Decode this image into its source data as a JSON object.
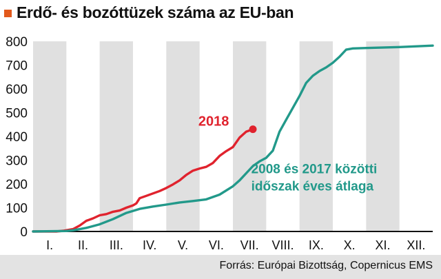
{
  "title": "Erdő- és bozóttüzek száma az EU-ban",
  "source": "Forrás: Európai Bizottság, Copernicus EMS",
  "colors": {
    "accent": "#e2591c",
    "series_2018": "#e0232e",
    "series_avg": "#22998a",
    "band": "#e0e0e0",
    "background": "#ffffff"
  },
  "chart_data": {
    "type": "line",
    "title": "Erdő- és bozóttüzek száma az EU-ban",
    "xlabel": "",
    "ylabel": "",
    "categories": [
      "I.",
      "II.",
      "III.",
      "IV.",
      "V.",
      "VI.",
      "VII.",
      "VIII.",
      "IX.",
      "X.",
      "XI.",
      "XII."
    ],
    "xlim": [
      0,
      12
    ],
    "ylim": [
      0,
      800
    ],
    "yticks": [
      0,
      100,
      200,
      300,
      400,
      500,
      600,
      700,
      800
    ],
    "grid": false,
    "series": [
      {
        "name": "2018",
        "color": "#e0232e",
        "end_marker": true,
        "points": [
          [
            0.0,
            0
          ],
          [
            0.7,
            0
          ],
          [
            0.9,
            3
          ],
          [
            1.2,
            10
          ],
          [
            1.4,
            25
          ],
          [
            1.6,
            45
          ],
          [
            1.8,
            55
          ],
          [
            2.0,
            68
          ],
          [
            2.2,
            73
          ],
          [
            2.4,
            83
          ],
          [
            2.6,
            88
          ],
          [
            2.8,
            100
          ],
          [
            3.0,
            110
          ],
          [
            3.1,
            118
          ],
          [
            3.2,
            140
          ],
          [
            3.4,
            150
          ],
          [
            3.6,
            160
          ],
          [
            3.8,
            170
          ],
          [
            4.0,
            183
          ],
          [
            4.2,
            198
          ],
          [
            4.4,
            215
          ],
          [
            4.6,
            238
          ],
          [
            4.8,
            256
          ],
          [
            5.0,
            265
          ],
          [
            5.2,
            272
          ],
          [
            5.4,
            288
          ],
          [
            5.6,
            318
          ],
          [
            5.8,
            338
          ],
          [
            6.0,
            355
          ],
          [
            6.2,
            395
          ],
          [
            6.4,
            420
          ],
          [
            6.6,
            430
          ]
        ]
      },
      {
        "name": "2008 és 2017 közötti időszak éves átlaga",
        "color": "#22998a",
        "end_marker": false,
        "points": [
          [
            0.0,
            0
          ],
          [
            1.0,
            2
          ],
          [
            1.2,
            5
          ],
          [
            1.6,
            15
          ],
          [
            2.0,
            30
          ],
          [
            2.4,
            52
          ],
          [
            2.8,
            78
          ],
          [
            3.2,
            95
          ],
          [
            3.6,
            105
          ],
          [
            4.0,
            113
          ],
          [
            4.4,
            122
          ],
          [
            4.8,
            128
          ],
          [
            5.2,
            135
          ],
          [
            5.6,
            155
          ],
          [
            6.0,
            190
          ],
          [
            6.2,
            215
          ],
          [
            6.4,
            245
          ],
          [
            6.6,
            275
          ],
          [
            6.8,
            295
          ],
          [
            7.0,
            310
          ],
          [
            7.2,
            340
          ],
          [
            7.4,
            420
          ],
          [
            7.6,
            470
          ],
          [
            7.8,
            520
          ],
          [
            8.0,
            570
          ],
          [
            8.2,
            625
          ],
          [
            8.4,
            655
          ],
          [
            8.6,
            675
          ],
          [
            8.8,
            690
          ],
          [
            9.0,
            710
          ],
          [
            9.2,
            735
          ],
          [
            9.4,
            765
          ],
          [
            9.6,
            770
          ],
          [
            10.0,
            772
          ],
          [
            11.0,
            776
          ],
          [
            12.0,
            782
          ]
        ]
      }
    ],
    "annotations": [
      {
        "text": "2018",
        "series": 0
      },
      {
        "lines": [
          "2008 és 2017 közötti",
          "időszak éves átlaga"
        ],
        "series": 1
      }
    ]
  }
}
